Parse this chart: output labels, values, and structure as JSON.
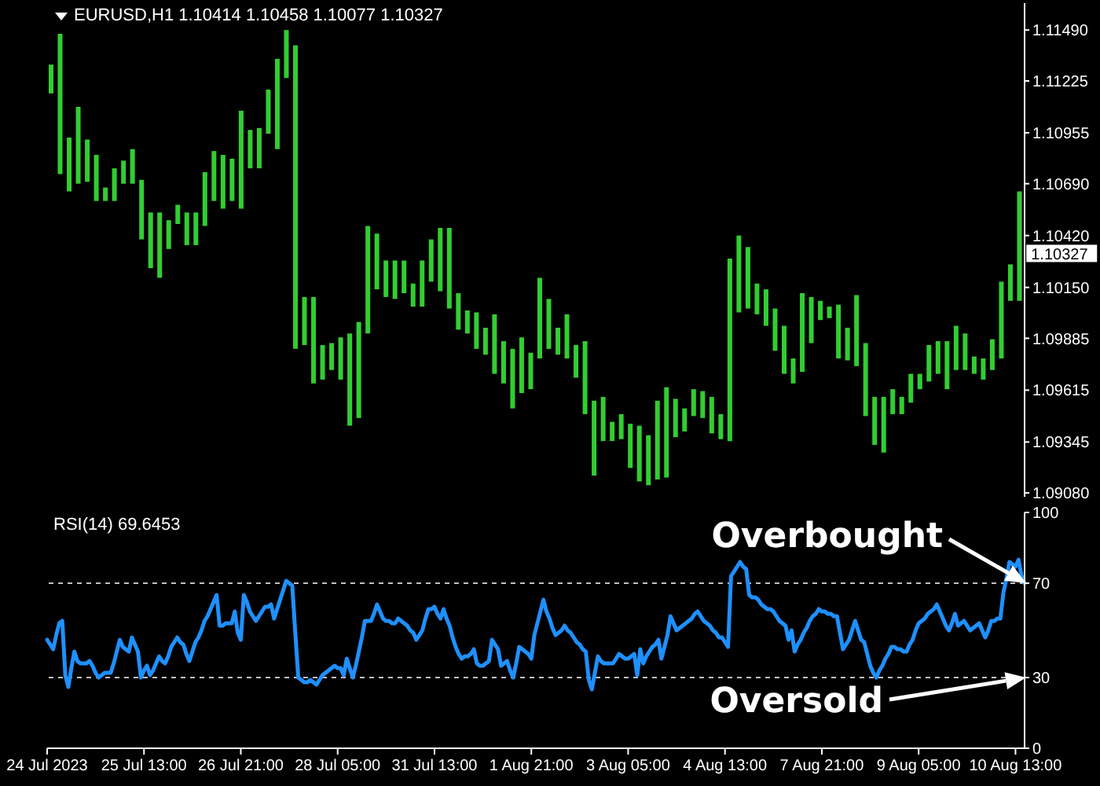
{
  "chart_data": [
    {
      "type": "bar",
      "title": "EURUSD,H1 1.10414 1.10458 1.10077 1.10327",
      "color": "#32cd32",
      "categories": [
        null,
        null,
        null,
        null,
        null,
        null,
        null,
        null,
        null,
        null,
        null,
        null,
        null,
        null,
        null,
        null,
        null,
        null,
        null,
        null,
        null,
        null,
        null,
        null,
        null,
        null,
        null,
        null,
        null,
        null,
        null,
        null,
        null,
        null,
        null,
        null,
        null,
        null,
        null,
        null,
        null,
        null,
        null,
        null,
        null,
        null,
        null,
        null,
        null,
        null,
        null,
        null,
        null,
        null,
        null,
        null,
        null,
        null,
        null,
        null,
        null,
        null,
        null,
        null,
        null,
        null,
        null,
        null,
        null,
        null,
        null,
        null,
        null,
        null,
        null,
        null,
        null,
        null,
        null,
        null,
        null,
        null,
        null,
        null,
        null,
        null,
        null,
        null,
        null,
        null,
        null,
        null,
        null,
        null,
        null,
        null,
        null,
        null,
        null,
        null,
        null,
        null,
        null,
        null,
        null,
        null,
        null,
        null
      ],
      "base": [
        1.1116,
        1.1074,
        1.1065,
        1.1069,
        1.107,
        1.106,
        1.106,
        1.106,
        1.1069,
        1.1069,
        1.104,
        1.1025,
        1.102,
        1.1035,
        1.1048,
        1.1037,
        1.1037,
        1.1047,
        1.106,
        1.1056,
        1.106,
        1.1056,
        1.1077,
        1.1077,
        1.1095,
        1.1087,
        1.1124,
        1.0983,
        1.0985,
        1.0965,
        1.0967,
        1.0972,
        1.0967,
        1.0943,
        1.0947,
        1.0991,
        1.1014,
        1.101,
        1.1009,
        1.1012,
        1.1005,
        1.1005,
        1.1018,
        1.1013,
        1.1004,
        1.0993,
        1.0991,
        1.0983,
        1.098,
        1.097,
        1.0965,
        1.0952,
        1.096,
        1.0962,
        1.0978,
        1.0983,
        1.098,
        1.0978,
        1.0968,
        1.0949,
        1.0917,
        1.0935,
        1.0935,
        1.0936,
        1.0921,
        1.0914,
        1.0912,
        1.0915,
        1.0916,
        1.0937,
        1.094,
        1.0948,
        1.0947,
        1.0939,
        1.0936,
        1.0935,
        1.1002,
        1.1004,
        1.1001,
        1.0995,
        1.0982,
        1.097,
        1.0965,
        1.0971,
        1.0986,
        1.0998,
        1.0999,
        1.0978,
        1.0977,
        1.0974,
        1.0948,
        1.0933,
        1.0929,
        1.0949,
        1.0949,
        1.0955,
        1.0962,
        1.0966,
        1.097,
        1.0962,
        1.0972,
        1.0972,
        1.097,
        1.0967,
        1.0972,
        1.0978,
        1.1008,
        1.1008
      ],
      "values": [
        0.0015,
        0.0073,
        0.0028,
        0.004,
        0.0022,
        0.0024,
        0.0007,
        0.0017,
        0.0012,
        0.0018,
        0.0031,
        0.0029,
        0.0034,
        0.0015,
        0.001,
        0.0017,
        0.0017,
        0.0028,
        0.0026,
        0.0028,
        0.0022,
        0.0051,
        0.002,
        0.0021,
        0.0023,
        0.0047,
        0.0025,
        0.0158,
        0.0025,
        0.0045,
        0.0018,
        0.0014,
        0.0022,
        0.0048,
        0.005,
        0.0056,
        0.0029,
        0.0019,
        0.002,
        0.0017,
        0.0012,
        0.0024,
        0.0022,
        0.0033,
        0.0042,
        0.0019,
        0.0012,
        0.0019,
        0.0014,
        0.0031,
        0.0022,
        0.0031,
        0.0029,
        0.0019,
        0.0042,
        0.0026,
        0.0014,
        0.0023,
        0.0017,
        0.0038,
        0.0039,
        0.0023,
        0.001,
        0.0013,
        0.0023,
        0.0029,
        0.0026,
        0.0041,
        0.0047,
        0.002,
        0.0012,
        0.0014,
        0.0014,
        0.0019,
        0.0013,
        0.0095,
        0.004,
        0.0032,
        0.0016,
        0.0019,
        0.0022,
        0.0025,
        0.0013,
        0.0041,
        0.0024,
        0.001,
        0.0006,
        0.0028,
        0.0017,
        0.0037,
        0.0038,
        0.0025,
        0.0029,
        0.0013,
        0.0009,
        0.0015,
        0.0008,
        0.0019,
        0.0017,
        0.0025,
        0.0023,
        0.0019,
        0.0009,
        0.0011,
        0.0016,
        0.004,
        0.0019,
        0.0057
      ],
      "ylim": [
        1.0906,
        1.1163
      ],
      "yticks": [
        {
          "value": 1.0908,
          "label": "1.09080"
        },
        1.09345,
        1.09615,
        1.09885,
        {
          "value": 1.1015,
          "label": "1.10150"
        },
        {
          "value": 1.1042,
          "label": "1.10420"
        },
        {
          "value": 1.1069,
          "label": "1.10690"
        },
        1.10955,
        1.11225,
        {
          "value": 1.1149,
          "label": "1.11490"
        }
      ],
      "tick_labels": "y",
      "annotations": [
        "1.10327"
      ]
    },
    {
      "type": "line",
      "title": "RSI(14) 69.6453",
      "color": "#1e90ff",
      "categories": [
        "24 Jul 2023",
        null,
        null,
        null,
        null,
        null,
        null,
        null,
        null,
        null,
        null,
        null,
        null,
        null,
        null,
        null,
        null,
        null,
        null,
        null,
        null,
        null,
        null,
        null,
        null,
        null,
        null,
        null,
        null,
        null,
        null,
        null,
        "25 Jul 13:00",
        null,
        null,
        null,
        null,
        null,
        null,
        null,
        null,
        null,
        null,
        null,
        null,
        null,
        null,
        null,
        null,
        null,
        null,
        null,
        null,
        null,
        null,
        null,
        null,
        null,
        null,
        null,
        null,
        null,
        null,
        null,
        "26 Jul 21:00",
        null,
        null,
        null,
        null,
        null,
        null,
        null,
        null,
        null,
        null,
        null,
        null,
        null,
        null,
        null,
        null,
        null,
        null,
        null,
        null,
        null,
        null,
        null,
        null,
        null,
        null,
        null,
        null,
        null,
        null,
        null,
        "28 Jul 05:00",
        null,
        null,
        null,
        null,
        null,
        null,
        null,
        null,
        null,
        null,
        null,
        null,
        null,
        null,
        null,
        null,
        null,
        null,
        null,
        null,
        null,
        null,
        null,
        null,
        null,
        null,
        null,
        null,
        null,
        null,
        null,
        "31 Jul 13:00",
        null,
        null,
        null,
        null,
        null,
        null,
        null,
        null,
        null,
        null,
        null,
        null,
        null,
        null,
        null,
        null,
        null,
        null,
        null,
        null,
        null,
        null,
        null,
        null,
        null,
        null,
        null,
        null,
        null,
        null,
        null,
        "1 Aug 21:00",
        null,
        null,
        null,
        null,
        null,
        null,
        null,
        null,
        null,
        null,
        null,
        null,
        null,
        null,
        null,
        null,
        null,
        null,
        null,
        null,
        null,
        null,
        null,
        null,
        null,
        null,
        null,
        null,
        null,
        null,
        null,
        "3 Aug 05:00",
        null,
        null,
        null,
        null,
        null,
        null,
        null,
        null,
        null,
        null,
        null,
        null,
        null,
        null,
        null,
        null,
        null,
        null,
        null,
        null,
        null,
        null,
        null,
        null,
        null,
        null,
        null,
        null,
        null,
        null,
        null,
        "4 Aug 13:00",
        null,
        null,
        null,
        null,
        null,
        null,
        null,
        null,
        null,
        null,
        null,
        null,
        null,
        null,
        null,
        null,
        null,
        null,
        null,
        null,
        null,
        null,
        null,
        null,
        null,
        null,
        null,
        null,
        null,
        null,
        null,
        "7 Aug 21:00",
        null,
        null,
        null,
        null,
        null,
        null,
        null,
        null,
        null,
        null,
        null,
        null,
        null,
        null,
        null,
        null,
        null,
        null,
        null,
        null,
        null,
        null,
        null,
        null,
        null,
        null,
        null,
        null,
        null,
        null,
        null,
        "9 Aug 05:00",
        null,
        null,
        null,
        null,
        null,
        null,
        null,
        null,
        null,
        null,
        null,
        null,
        null,
        null,
        null,
        null,
        null,
        null,
        null,
        null,
        null,
        null,
        null,
        null,
        null,
        null,
        null,
        null,
        null,
        null,
        null,
        "10 Aug 13:00",
        null,
        null,
        null
      ],
      "values": [
        46,
        44,
        42,
        48,
        53,
        54,
        31,
        26,
        34,
        41,
        37,
        36,
        36,
        36,
        37,
        35,
        32,
        30,
        31,
        32,
        32,
        32,
        36,
        41,
        46,
        43,
        42,
        41,
        47,
        44,
        41,
        30,
        33,
        35,
        31,
        33,
        36,
        39,
        37,
        36,
        39,
        43,
        45,
        47,
        45,
        44,
        40,
        37,
        41,
        45,
        47,
        50,
        54,
        56,
        59,
        62,
        65,
        52,
        52,
        53,
        53,
        53,
        58,
        49,
        46,
        65,
        62,
        58,
        56,
        54,
        56,
        58,
        60,
        60,
        61,
        55,
        59,
        63,
        67,
        71,
        70,
        69,
        49,
        30,
        29,
        28,
        28,
        29,
        28,
        27,
        29,
        31,
        32,
        33,
        34,
        35,
        34,
        34,
        31,
        38,
        34,
        30,
        35,
        41,
        47,
        54,
        54,
        54,
        57,
        61,
        58,
        55,
        54,
        54,
        53,
        53,
        55,
        54,
        53,
        52,
        50,
        49,
        46,
        48,
        50,
        55,
        59,
        59,
        60,
        57,
        55,
        59,
        55,
        52,
        47,
        43,
        40,
        38,
        39,
        39,
        40,
        42,
        36,
        35,
        35,
        36,
        37,
        46,
        44,
        42,
        35,
        36,
        37,
        33,
        30,
        36,
        43,
        42,
        41,
        40,
        38,
        48,
        53,
        58,
        63,
        58,
        55,
        51,
        48,
        49,
        50,
        52,
        50,
        49,
        47,
        45,
        44,
        42,
        41,
        29,
        25,
        32,
        39,
        37,
        36,
        36,
        36,
        36,
        38,
        40,
        39,
        38,
        38,
        39,
        40,
        31,
        42,
        36,
        39,
        41,
        43,
        44,
        46,
        38,
        43,
        48,
        56,
        53,
        50,
        51,
        52,
        53,
        54,
        55,
        57,
        58,
        56,
        54,
        53,
        52,
        50,
        49,
        47,
        47,
        45,
        43,
        73,
        75,
        77,
        79,
        77,
        76,
        65,
        64,
        64,
        63,
        61,
        60,
        59,
        59,
        58,
        56,
        54,
        53,
        52,
        46,
        50,
        41,
        44,
        46,
        49,
        51,
        54,
        56,
        57,
        59,
        58,
        58,
        57,
        57,
        56,
        56,
        49,
        42,
        44,
        46,
        50,
        54,
        50,
        46,
        45,
        40,
        35,
        32,
        30,
        33,
        35,
        38,
        40,
        43,
        43,
        42,
        42,
        41,
        41,
        44,
        46,
        50,
        53,
        54,
        55,
        57,
        58,
        59,
        61,
        58,
        55,
        52,
        50,
        53,
        57,
        52,
        53,
        54,
        52,
        50,
        51,
        52,
        53,
        50,
        47,
        50,
        54,
        54,
        55,
        55,
        66,
        72,
        79,
        78,
        77,
        80,
        73,
        70
      ],
      "ylim": [
        0,
        100
      ],
      "yticks": [
        0,
        30,
        70,
        100
      ],
      "ref_lines": [
        {
          "axis": "y",
          "value": 70,
          "color": "#c0c0c0",
          "line_style": "dashed"
        },
        {
          "axis": "y",
          "value": 30,
          "color": "#c0c0c0",
          "line_style": "dashed"
        }
      ],
      "annotations": [
        {
          "text": "Overbought",
          "y": 70
        },
        {
          "text": "Oversold",
          "y": 30
        }
      ]
    }
  ]
}
